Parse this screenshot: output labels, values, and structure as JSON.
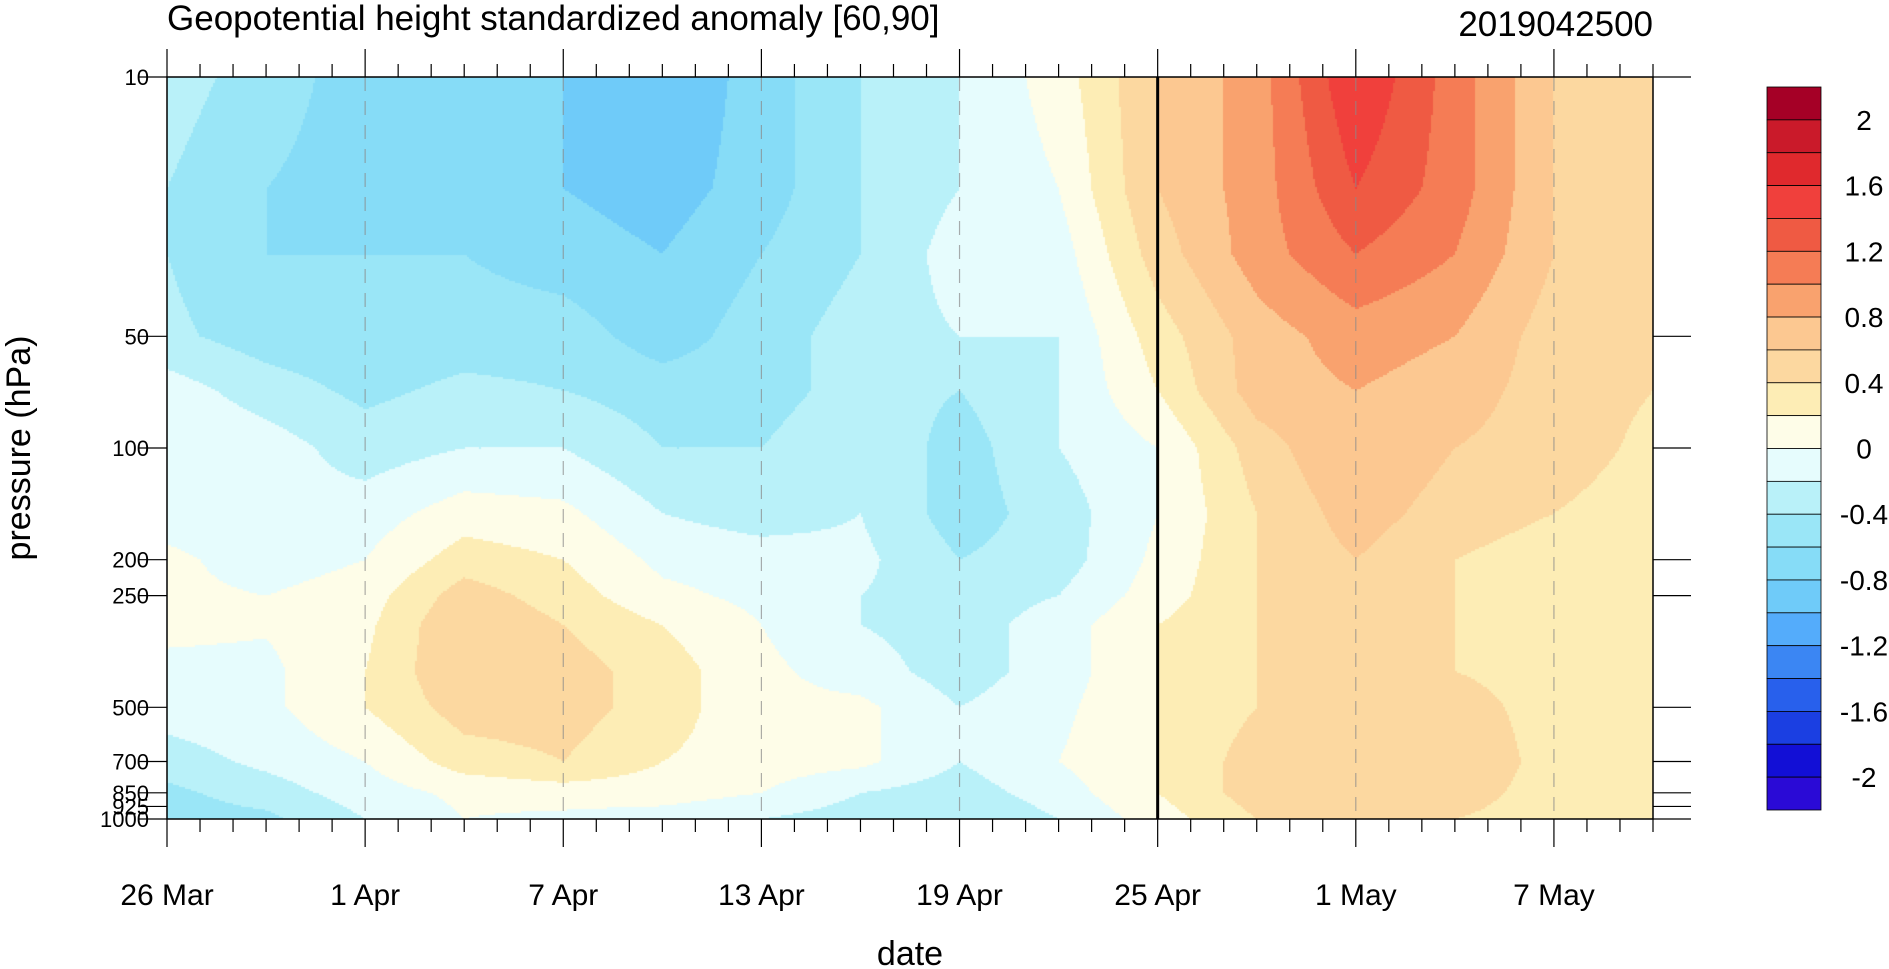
{
  "chart_data": {
    "type": "heatmap",
    "title": "Geopotential height standardized anomaly [60,90]",
    "timestamp": "2019042500",
    "xlabel": "date",
    "ylabel": "pressure (hPa)",
    "x_ticks": [
      "26 Mar",
      "1 Apr",
      "7 Apr",
      "13 Apr",
      "19 Apr",
      "25 Apr",
      "1 May",
      "7 May"
    ],
    "x_range_days": [
      0,
      45
    ],
    "x_tick_days": [
      0,
      6,
      12,
      18,
      24,
      30,
      36,
      42
    ],
    "y_scale": "log",
    "y_ticks": [
      "10",
      "50",
      "100",
      "200",
      "250",
      "500",
      "700",
      "850",
      "925",
      "1000"
    ],
    "y_tick_values": [
      10,
      50,
      100,
      200,
      250,
      500,
      700,
      850,
      925,
      1000
    ],
    "y_range": [
      10,
      1000
    ],
    "reference_line_day": 30,
    "colorbar": {
      "levels": [
        -2.2,
        -2.0,
        -1.8,
        -1.6,
        -1.4,
        -1.2,
        -1.0,
        -0.8,
        -0.6,
        -0.4,
        -0.2,
        0,
        0.2,
        0.4,
        0.6,
        0.8,
        1.0,
        1.2,
        1.4,
        1.6,
        1.8,
        2.0,
        2.2
      ],
      "labels": [
        "2",
        "1.6",
        "1.2",
        "0.8",
        "0.4",
        "0",
        "-0.4",
        "-0.8",
        "-1.2",
        "-1.6",
        "-2"
      ],
      "label_values": [
        2.0,
        1.6,
        1.2,
        0.8,
        0.4,
        0,
        -0.4,
        -0.8,
        -1.2,
        -1.6,
        -2.0
      ],
      "colors": [
        "#a50026",
        "#ca1a2a",
        "#e0292d",
        "#f0403c",
        "#ef5a43",
        "#f57c55",
        "#f9a26e",
        "#fcc891",
        "#fcd8a0",
        "#fdedb5",
        "#fefde8",
        "#e6fcfd",
        "#b9f1f9",
        "#9ae6f7",
        "#86dcf7",
        "#6fcbf9",
        "#54acfb",
        "#3b86f3",
        "#2860ec",
        "#1b3fe2",
        "#120fd6",
        "#2a0ad6"
      ]
    },
    "grid": {
      "days": [
        0,
        3,
        6,
        9,
        12,
        15,
        18,
        21,
        24,
        27,
        30,
        33,
        36,
        39,
        42,
        45
      ],
      "pressures": [
        10,
        20,
        30,
        50,
        70,
        100,
        150,
        200,
        250,
        300,
        400,
        500,
        700,
        850,
        1000
      ],
      "values": [
        [
          -0.3,
          -0.5,
          -0.7,
          -0.6,
          -0.8,
          -1.0,
          -0.7,
          -0.4,
          -0.2,
          0.1,
          0.6,
          0.9,
          1.6,
          1.1,
          0.6,
          0.45
        ],
        [
          -0.4,
          -0.6,
          -0.7,
          -0.7,
          -0.8,
          -0.9,
          -0.7,
          -0.4,
          -0.2,
          0.0,
          0.6,
          0.9,
          1.4,
          1.1,
          0.6,
          0.45
        ],
        [
          -0.4,
          -0.6,
          -0.6,
          -0.6,
          -0.7,
          -0.8,
          -0.6,
          -0.4,
          -0.1,
          -0.1,
          0.5,
          0.9,
          1.2,
          1.0,
          0.6,
          0.45
        ],
        [
          -0.35,
          -0.5,
          -0.55,
          -0.5,
          -0.5,
          -0.7,
          -0.5,
          -0.3,
          -0.2,
          -0.2,
          0.3,
          0.7,
          0.9,
          0.8,
          0.5,
          0.42
        ],
        [
          -0.1,
          -0.3,
          -0.45,
          -0.35,
          -0.4,
          -0.5,
          -0.5,
          -0.3,
          -0.4,
          -0.2,
          0.2,
          0.7,
          0.8,
          0.7,
          0.5,
          0.4
        ],
        [
          0.0,
          -0.1,
          -0.3,
          -0.2,
          -0.2,
          -0.4,
          -0.4,
          -0.2,
          -0.5,
          -0.2,
          0.0,
          0.5,
          0.8,
          0.6,
          0.5,
          0.35
        ],
        [
          -0.1,
          -0.15,
          -0.1,
          0.1,
          0.05,
          -0.2,
          -0.3,
          -0.2,
          -0.5,
          -0.3,
          0.0,
          0.4,
          0.7,
          0.5,
          0.4,
          0.3
        ],
        [
          0.05,
          -0.1,
          0.0,
          0.3,
          0.2,
          -0.05,
          -0.1,
          -0.15,
          -0.4,
          -0.3,
          0.05,
          0.4,
          0.6,
          0.4,
          0.3,
          0.25
        ],
        [
          0.05,
          0.0,
          0.1,
          0.5,
          0.3,
          0.05,
          -0.05,
          -0.2,
          -0.3,
          -0.2,
          0.1,
          0.4,
          0.6,
          0.4,
          0.3,
          0.25
        ],
        [
          0.05,
          0.02,
          0.15,
          0.6,
          0.4,
          0.2,
          0.0,
          -0.2,
          -0.3,
          -0.1,
          0.2,
          0.4,
          0.5,
          0.4,
          0.3,
          0.3
        ],
        [
          -0.05,
          -0.05,
          0.2,
          0.6,
          0.5,
          0.3,
          0.05,
          -0.1,
          -0.3,
          -0.1,
          0.2,
          0.4,
          0.5,
          0.4,
          0.3,
          0.3
        ],
        [
          -0.1,
          -0.05,
          0.2,
          0.5,
          0.5,
          0.3,
          0.05,
          0.05,
          -0.2,
          -0.05,
          0.2,
          0.4,
          0.5,
          0.5,
          0.3,
          0.3
        ],
        [
          -0.3,
          -0.15,
          0.0,
          0.3,
          0.4,
          0.2,
          0.1,
          0.05,
          -0.2,
          0.0,
          0.2,
          0.5,
          0.5,
          0.6,
          0.3,
          0.3
        ],
        [
          -0.45,
          -0.3,
          -0.1,
          0.05,
          0.1,
          0.1,
          0.0,
          -0.2,
          -0.3,
          -0.1,
          0.2,
          0.5,
          0.5,
          0.5,
          0.3,
          0.3
        ],
        [
          -0.5,
          -0.45,
          -0.2,
          0.0,
          -0.05,
          -0.1,
          -0.2,
          -0.3,
          -0.4,
          -0.2,
          0.1,
          0.4,
          0.4,
          0.4,
          0.3,
          0.35
        ]
      ]
    }
  }
}
